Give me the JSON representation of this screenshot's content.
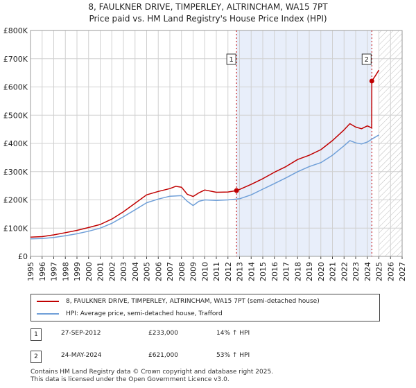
{
  "chart_data": {
    "type": "line",
    "title": "8, FAULKNER DRIVE, TIMPERLEY, ALTRINCHAM, WA15 7PT",
    "subtitle": "Price paid vs. HM Land Registry's House Price Index (HPI)",
    "xlabel": "",
    "ylabel": "",
    "xlim": [
      1995,
      2027
    ],
    "ylim": [
      0,
      800000
    ],
    "x_ticks": [
      "1995",
      "1996",
      "1997",
      "1998",
      "1999",
      "2000",
      "2001",
      "2002",
      "2003",
      "2004",
      "2005",
      "2006",
      "2007",
      "2008",
      "2009",
      "2010",
      "2011",
      "2012",
      "2013",
      "2014",
      "2015",
      "2016",
      "2017",
      "2018",
      "2019",
      "2020",
      "2021",
      "2022",
      "2023",
      "2024",
      "2025",
      "2026",
      "2027"
    ],
    "y_ticks": [
      {
        "value": 0,
        "label": "£0"
      },
      {
        "value": 100000,
        "label": "£100K"
      },
      {
        "value": 200000,
        "label": "£200K"
      },
      {
        "value": 300000,
        "label": "£300K"
      },
      {
        "value": 400000,
        "label": "£400K"
      },
      {
        "value": 500000,
        "label": "£500K"
      },
      {
        "value": 600000,
        "label": "£600K"
      },
      {
        "value": 700000,
        "label": "£700K"
      },
      {
        "value": 800000,
        "label": "£800K"
      }
    ],
    "grid": true,
    "shaded_period": [
      2012.74,
      2024.39
    ],
    "hatched_future_from": 2025.0,
    "series": [
      {
        "name": "8, FAULKNER DRIVE, TIMPERLEY, ALTRINCHAM, WA15 7PT (semi-detached house)",
        "color": "#c00000",
        "x": [
          1995,
          1996,
          1997,
          1998,
          1999,
          2000,
          2001,
          2002,
          2003,
          2004,
          2005,
          2006,
          2007,
          2007.5,
          2008,
          2008.5,
          2009,
          2009.5,
          2010,
          2011,
          2012,
          2012.74,
          2013,
          2014,
          2015,
          2016,
          2017,
          2018,
          2019,
          2020,
          2021,
          2022,
          2022.5,
          2023,
          2023.5,
          2024,
          2024.38,
          2024.39,
          2024.7,
          2025
        ],
        "values": [
          68000,
          70000,
          76000,
          84000,
          92000,
          102000,
          113000,
          132000,
          158000,
          188000,
          218000,
          230000,
          240000,
          248000,
          245000,
          220000,
          212000,
          225000,
          235000,
          227000,
          228000,
          233000,
          237000,
          255000,
          275000,
          298000,
          318000,
          343000,
          358000,
          378000,
          410000,
          448000,
          470000,
          458000,
          452000,
          462000,
          455000,
          621000,
          640000,
          660000
        ]
      },
      {
        "name": "HPI: Average price, semi-detached house, Trafford",
        "color": "#6f9fd8",
        "x": [
          1995,
          1996,
          1997,
          1998,
          1999,
          2000,
          2001,
          2002,
          2003,
          2004,
          2005,
          2006,
          2007,
          2008,
          2008.5,
          2009,
          2009.5,
          2010,
          2011,
          2012,
          2013,
          2014,
          2015,
          2016,
          2017,
          2018,
          2019,
          2020,
          2021,
          2022,
          2022.5,
          2023,
          2023.5,
          2024,
          2024.5,
          2025
        ],
        "values": [
          62000,
          63000,
          67000,
          73000,
          80000,
          89000,
          100000,
          117000,
          140000,
          165000,
          190000,
          203000,
          213000,
          215000,
          195000,
          180000,
          195000,
          200000,
          198000,
          200000,
          204000,
          218000,
          238000,
          258000,
          278000,
          300000,
          318000,
          332000,
          358000,
          392000,
          410000,
          402000,
          398000,
          405000,
          418000,
          430000
        ]
      }
    ],
    "annotations": [
      {
        "label": "1",
        "x": 2012.74,
        "value": 233000
      },
      {
        "label": "2",
        "x": 2024.39,
        "value": 621000
      }
    ]
  },
  "legend": {
    "property_label": "8, FAULKNER DRIVE, TIMPERLEY, ALTRINCHAM, WA15 7PT (semi-detached house)",
    "hpi_label": "HPI: Average price, semi-detached house, Trafford"
  },
  "transactions": [
    {
      "num": "1",
      "date": "27-SEP-2012",
      "price": "£233,000",
      "hpi": "14% ↑ HPI"
    },
    {
      "num": "2",
      "date": "24-MAY-2024",
      "price": "£621,000",
      "hpi": "53% ↑ HPI"
    }
  ],
  "footer": {
    "line1": "Contains HM Land Registry data © Crown copyright and database right 2025.",
    "line2": "This data is licensed under the Open Government Licence v3.0."
  },
  "colors": {
    "property": "#c00000",
    "hpi": "#6f9fd8",
    "shade": "#e8eefa",
    "grid": "#d0d0d0"
  }
}
